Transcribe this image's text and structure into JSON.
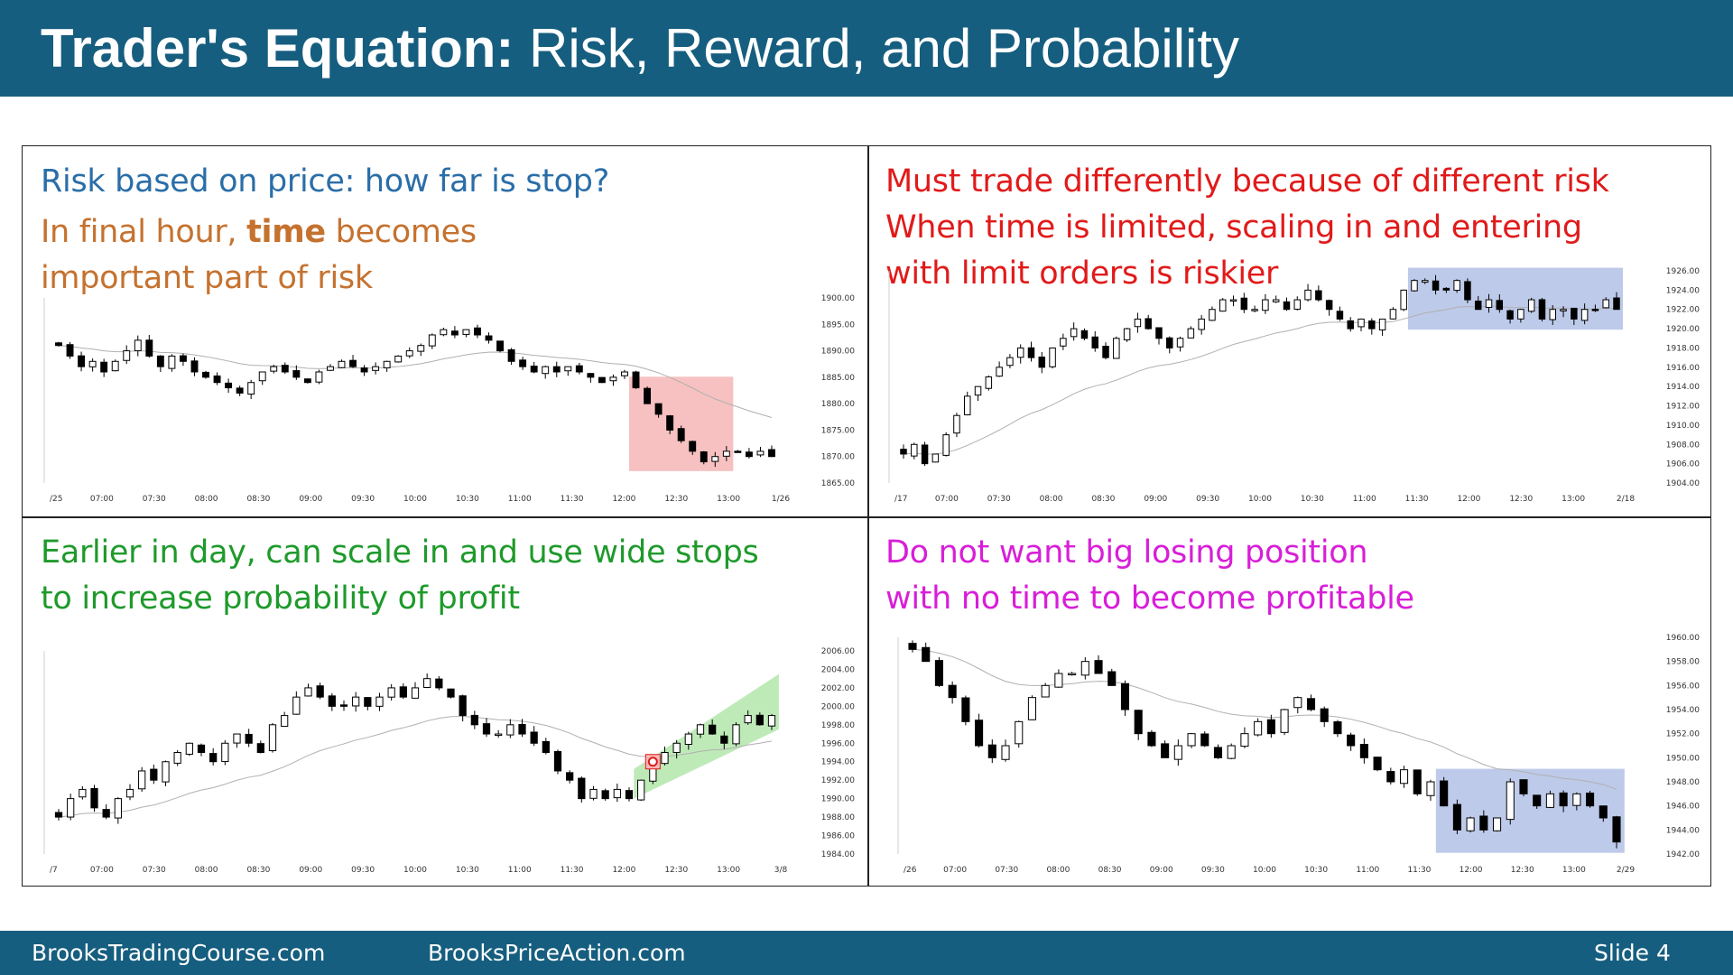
{
  "slide": {
    "title_bold": "Trader's Equation:",
    "title_rest": "Risk, Reward, and Probability",
    "footer_left": "BrooksTradingCourse.com",
    "footer_center": "BrooksPriceAction.com",
    "footer_slide": "Slide 4"
  },
  "colors": {
    "header_bg": "#165e7f",
    "blue_text": "#2a6ea8",
    "orange_text": "#c5722f",
    "red_text": "#e11a1a",
    "green_text": "#1e9a2b",
    "magenta_text": "#d81ed8",
    "red_box": "#f4a6a6",
    "blue_box": "#a3b3e0",
    "green_channel": "#a8e3a0"
  },
  "panels": {
    "tl": {
      "line1": "Risk based on price: how far is stop?",
      "line2_pre": "In final hour, ",
      "line2_bold": "time",
      "line2_post": " becomes",
      "line3": "important part of risk"
    },
    "tr": {
      "line1": "Must trade differently because of different risk",
      "line2": "When time is limited, scaling in and entering",
      "line3": "with limit orders is riskier"
    },
    "bl": {
      "line1": "Earlier in day, can scale in and use wide stops",
      "line2": "to increase probability of profit"
    },
    "br": {
      "line1": "Do not want big losing position",
      "line2": "with no time to become profitable"
    }
  },
  "chart_data": [
    {
      "type": "candlestick",
      "yticks": [
        "1900.00",
        "1895.00",
        "1890.00",
        "1885.00",
        "1880.00",
        "1875.00",
        "1870.00",
        "1865.00"
      ],
      "ylim": [
        1865,
        1900
      ],
      "xticks": [
        "/25",
        "07:00",
        "07:30",
        "08:00",
        "08:30",
        "09:00",
        "09:30",
        "10:00",
        "10:30",
        "11:00",
        "11:30",
        "12:00",
        "12:30",
        "13:00",
        "1/26"
      ],
      "close_path": [
        1891,
        1889,
        1887,
        1888,
        1886,
        1888,
        1890,
        1892,
        1889,
        1887,
        1889,
        1888,
        1886,
        1885,
        1884,
        1883,
        1882,
        1884,
        1886,
        1887,
        1886,
        1885,
        1884,
        1886,
        1887,
        1888,
        1887,
        1886,
        1887,
        1888,
        1889,
        1890,
        1891,
        1893,
        1894,
        1893,
        1894,
        1893,
        1892,
        1890,
        1888,
        1887,
        1886,
        1887,
        1886,
        1887,
        1886,
        1885,
        1884,
        1885,
        1886,
        1883,
        1880,
        1878,
        1875,
        1873,
        1871,
        1869,
        1870,
        1871,
        1871,
        1870,
        1871,
        1870
      ],
      "highlight": {
        "color": "red",
        "from_bar": 51,
        "to_bar": 59
      }
    },
    {
      "type": "candlestick",
      "yticks": [
        "1926.00",
        "1924.00",
        "1922.00",
        "1920.00",
        "1918.00",
        "1916.00",
        "1914.00",
        "1912.00",
        "1910.00",
        "1908.00",
        "1906.00",
        "1904.00"
      ],
      "ylim": [
        1904,
        1926
      ],
      "xticks": [
        "/17",
        "07:00",
        "07:30",
        "08:00",
        "08:30",
        "09:00",
        "09:30",
        "10:00",
        "10:30",
        "11:00",
        "11:30",
        "12:00",
        "12:30",
        "13:00",
        "2/18"
      ],
      "close_path": [
        1907,
        1908,
        1906,
        1907,
        1909,
        1911,
        1913,
        1914,
        1915,
        1916,
        1917,
        1918,
        1917,
        1916,
        1918,
        1919,
        1920,
        1919,
        1918,
        1917,
        1919,
        1920,
        1921,
        1920,
        1919,
        1918,
        1919,
        1920,
        1921,
        1922,
        1923,
        1923,
        1922,
        1922,
        1923,
        1923,
        1922,
        1923,
        1924,
        1923,
        1922,
        1921,
        1920,
        1921,
        1920,
        1921,
        1922,
        1924,
        1925,
        1925,
        1924,
        1924,
        1925,
        1923,
        1922,
        1923,
        1922,
        1921,
        1922,
        1923,
        1921,
        1922,
        1922,
        1921,
        1922,
        1922,
        1923,
        1922
      ],
      "highlight": {
        "color": "blue",
        "from_bar": 48,
        "to_bar": 67
      }
    },
    {
      "type": "candlestick",
      "yticks": [
        "2006.00",
        "2004.00",
        "2002.00",
        "2000.00",
        "1998.00",
        "1996.00",
        "1994.00",
        "1992.00",
        "1990.00",
        "1988.00",
        "1986.00",
        "1984.00"
      ],
      "ylim": [
        1984,
        2006
      ],
      "xticks": [
        "/7",
        "07:00",
        "07:30",
        "08:00",
        "08:30",
        "09:00",
        "09:30",
        "10:00",
        "10:30",
        "11:00",
        "11:30",
        "12:00",
        "12:30",
        "13:00",
        "3/8"
      ],
      "close_path": [
        1988,
        1990,
        1991,
        1989,
        1988,
        1990,
        1991,
        1993,
        1992,
        1994,
        1995,
        1996,
        1995,
        1994,
        1996,
        1997,
        1996,
        1995,
        1998,
        1999,
        2001,
        2002,
        2001,
        2000,
        2000,
        2001,
        2000,
        2001,
        2002,
        2001,
        2002,
        2003,
        2002,
        2001,
        1999,
        1998,
        1997,
        1997,
        1998,
        1997,
        1996,
        1995,
        1993,
        1992,
        1990,
        1991,
        1990,
        1991,
        1990,
        1992,
        1994,
        1995,
        1996,
        1997,
        1998,
        1997,
        1996,
        1998,
        1999,
        1998,
        1999
      ],
      "highlight": {
        "color": "green",
        "from_bar": 49,
        "to_bar": 60
      },
      "marker": "entry"
    },
    {
      "type": "candlestick",
      "yticks": [
        "1960.00",
        "1958.00",
        "1956.00",
        "1954.00",
        "1952.00",
        "1950.00",
        "1948.00",
        "1946.00",
        "1944.00",
        "1942.00"
      ],
      "ylim": [
        1942,
        1960
      ],
      "xticks": [
        "/26",
        "07:00",
        "07:30",
        "08:00",
        "08:30",
        "09:00",
        "09:30",
        "10:00",
        "10:30",
        "11:00",
        "11:30",
        "12:00",
        "12:30",
        "13:00",
        "2/29"
      ],
      "close_path": [
        1959,
        1958,
        1956,
        1955,
        1953,
        1951,
        1950,
        1951,
        1953,
        1955,
        1956,
        1957,
        1957,
        1958,
        1957,
        1956,
        1954,
        1952,
        1951,
        1950,
        1951,
        1952,
        1951,
        1950,
        1951,
        1952,
        1953,
        1952,
        1954,
        1955,
        1954,
        1953,
        1952,
        1951,
        1950,
        1949,
        1948,
        1949,
        1947,
        1948,
        1946,
        1944,
        1945,
        1944,
        1945,
        1948,
        1947,
        1946,
        1947,
        1946,
        1947,
        1946,
        1945,
        1943
      ],
      "highlight": {
        "color": "blue",
        "from_bar": 40,
        "to_bar": 53
      }
    }
  ]
}
